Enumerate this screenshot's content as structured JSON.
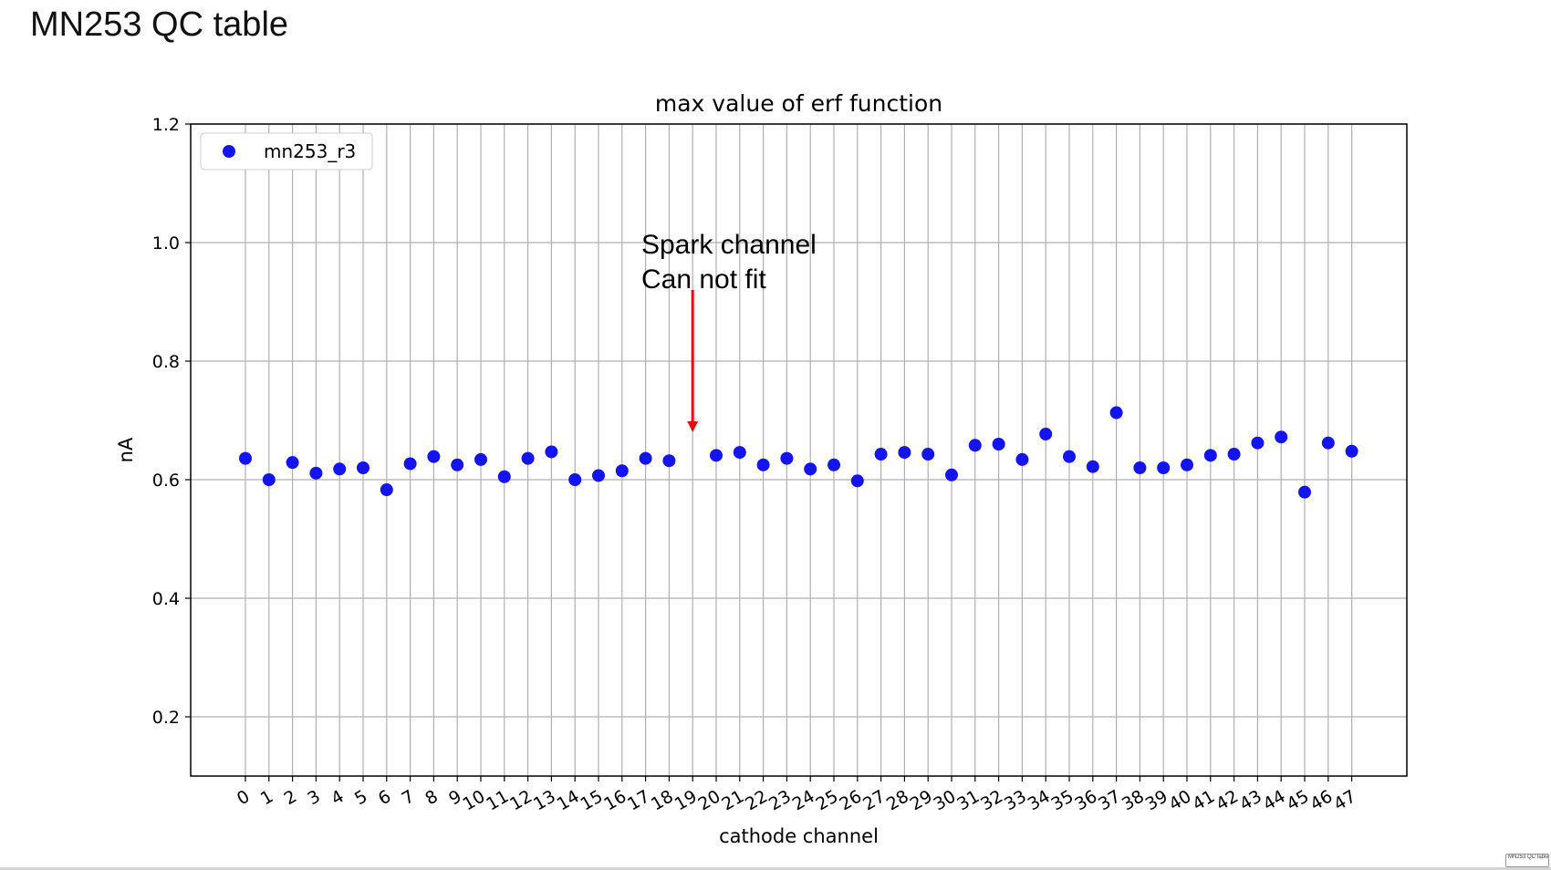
{
  "slide": {
    "title": "MN253 QC table"
  },
  "chart_data": {
    "type": "scatter",
    "title": "max value of erf function",
    "xlabel": "cathode channel",
    "ylabel": "nA",
    "ylim": [
      0.1,
      1.2
    ],
    "yticks": [
      "0.2",
      "0.4",
      "0.6",
      "0.8",
      "1.0",
      "1.2"
    ],
    "grid": true,
    "legend_position": "upper-left",
    "color": "#1414f0",
    "series": [
      {
        "name": "mn253_r3",
        "x": [
          "0",
          "1",
          "2",
          "3",
          "4",
          "5",
          "6",
          "7",
          "8",
          "9",
          "10",
          "11",
          "12",
          "13",
          "14",
          "15",
          "16",
          "17",
          "18",
          "20",
          "21",
          "22",
          "23",
          "24",
          "25",
          "26",
          "27",
          "28",
          "29",
          "30",
          "31",
          "32",
          "33",
          "34",
          "35",
          "36",
          "37",
          "38",
          "39",
          "40",
          "41",
          "42",
          "43",
          "44",
          "45",
          "46",
          "47"
        ],
        "y": [
          0.636,
          0.6,
          0.629,
          0.611,
          0.618,
          0.62,
          0.583,
          0.627,
          0.639,
          0.625,
          0.634,
          0.605,
          0.636,
          0.647,
          0.6,
          0.607,
          0.615,
          0.636,
          0.632,
          0.641,
          0.646,
          0.625,
          0.636,
          0.618,
          0.625,
          0.598,
          0.643,
          0.646,
          0.643,
          0.608,
          0.658,
          0.66,
          0.634,
          0.677,
          0.639,
          0.622,
          0.713,
          0.62,
          0.62,
          0.625,
          0.641,
          0.643,
          0.662,
          0.672,
          0.579,
          0.662,
          0.648
        ]
      }
    ],
    "categories": [
      "0",
      "1",
      "2",
      "3",
      "4",
      "5",
      "6",
      "7",
      "8",
      "9",
      "10",
      "11",
      "12",
      "13",
      "14",
      "15",
      "16",
      "17",
      "18",
      "19",
      "20",
      "21",
      "22",
      "23",
      "24",
      "25",
      "26",
      "27",
      "28",
      "29",
      "30",
      "31",
      "32",
      "33",
      "34",
      "35",
      "36",
      "37",
      "38",
      "39",
      "40",
      "41",
      "42",
      "43",
      "44",
      "45",
      "46",
      "47"
    ],
    "annotation": {
      "lines": [
        "Spark channel",
        "Can not fit"
      ],
      "target_channel": "19",
      "arrow_from_value": 0.92,
      "arrow_to_value": 0.68,
      "arrow_color": "#e01010"
    }
  },
  "footer": {
    "thumbnail_label": "MN253 QC table"
  }
}
